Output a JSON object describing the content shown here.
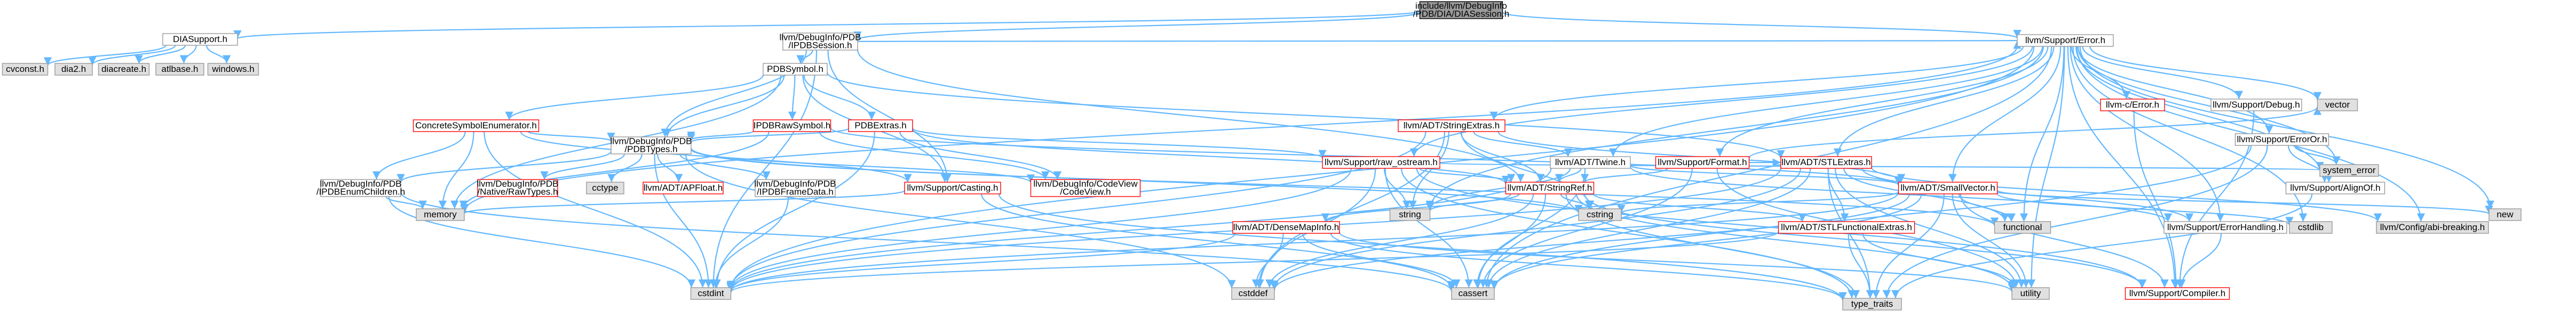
{
  "colors": {
    "edge": "#63b8ff",
    "node_fill": "#ffffff",
    "node_focus_fill": "#999999",
    "external_fill": "#e0e0e0",
    "border_gray": "#999999",
    "border_red": "#ff0000",
    "border_black": "#000000"
  },
  "nodes": [
    {
      "id": "root",
      "lines": [
        "include/llvm/DebugInfo",
        "/PDB/DIA/DIASession.h"
      ],
      "style": "focus"
    },
    {
      "id": "diasupport",
      "lines": [
        "DIASupport.h"
      ],
      "style": "normal"
    },
    {
      "id": "pdbsession",
      "lines": [
        "llvm/DebugInfo/PDB",
        "/IPDBSession.h"
      ],
      "style": "normal"
    },
    {
      "id": "supporterror",
      "lines": [
        "llvm/Support/Error.h"
      ],
      "style": "normal"
    },
    {
      "id": "cvconst",
      "lines": [
        "cvconst.h"
      ],
      "style": "external"
    },
    {
      "id": "dia2",
      "lines": [
        "dia2.h"
      ],
      "style": "external"
    },
    {
      "id": "diacreate",
      "lines": [
        "diacreate.h"
      ],
      "style": "external"
    },
    {
      "id": "atlbase",
      "lines": [
        "atlbase.h"
      ],
      "style": "external"
    },
    {
      "id": "windows",
      "lines": [
        "windows.h"
      ],
      "style": "external"
    },
    {
      "id": "pdbsymbol",
      "lines": [
        "PDBSymbol.h"
      ],
      "style": "normal"
    },
    {
      "id": "concreteenum",
      "lines": [
        "ConcreteSymbolEnumerator.h"
      ],
      "style": "red"
    },
    {
      "id": "ipdbraw",
      "lines": [
        "IPDBRawSymbol.h"
      ],
      "style": "red"
    },
    {
      "id": "pdbextras",
      "lines": [
        "PDBExtras.h"
      ],
      "style": "red"
    },
    {
      "id": "pdbtypes",
      "lines": [
        "llvm/DebugInfo/PDB",
        "/PDBTypes.h"
      ],
      "style": "normal"
    },
    {
      "id": "stringextras",
      "lines": [
        "llvm/ADT/StringExtras.h"
      ],
      "style": "red"
    },
    {
      "id": "rawostream",
      "lines": [
        "llvm/Support/raw_ostream.h"
      ],
      "style": "red"
    },
    {
      "id": "twine",
      "lines": [
        "llvm/ADT/Twine.h"
      ],
      "style": "normal"
    },
    {
      "id": "supportformat",
      "lines": [
        "llvm/Support/Format.h"
      ],
      "style": "red"
    },
    {
      "id": "stlextras",
      "lines": [
        "llvm/ADT/STLExtras.h"
      ],
      "style": "red"
    },
    {
      "id": "cerror",
      "lines": [
        "llvm-c/Error.h"
      ],
      "style": "red"
    },
    {
      "id": "supportdebug",
      "lines": [
        "llvm/Support/Debug.h"
      ],
      "style": "normal"
    },
    {
      "id": "vector",
      "lines": [
        "vector"
      ],
      "style": "external"
    },
    {
      "id": "erroror",
      "lines": [
        "llvm/Support/ErrorOr.h"
      ],
      "style": "normal"
    },
    {
      "id": "systemerror",
      "lines": [
        "system_error"
      ],
      "style": "external"
    },
    {
      "id": "ipdbenum",
      "lines": [
        "llvm/DebugInfo/PDB",
        "/IPDBEnumChildren.h"
      ],
      "style": "normal"
    },
    {
      "id": "nativeraw",
      "lines": [
        "llvm/DebugInfo/PDB",
        "/Native/RawTypes.h"
      ],
      "style": "red"
    },
    {
      "id": "cctype",
      "lines": [
        "cctype"
      ],
      "style": "external"
    },
    {
      "id": "apfloat",
      "lines": [
        "llvm/ADT/APFloat.h"
      ],
      "style": "red"
    },
    {
      "id": "frameData",
      "lines": [
        "llvm/DebugInfo/PDB",
        "/IPDBFrameData.h"
      ],
      "style": "normal"
    },
    {
      "id": "casting",
      "lines": [
        "llvm/Support/Casting.h"
      ],
      "style": "red"
    },
    {
      "id": "codeview",
      "lines": [
        "llvm/DebugInfo/CodeView",
        "/CodeView.h"
      ],
      "style": "red"
    },
    {
      "id": "stringref",
      "lines": [
        "llvm/ADT/StringRef.h"
      ],
      "style": "red"
    },
    {
      "id": "smallvector",
      "lines": [
        "llvm/ADT/SmallVector.h"
      ],
      "style": "red"
    },
    {
      "id": "alignof",
      "lines": [
        "llvm/Support/AlignOf.h"
      ],
      "style": "normal"
    },
    {
      "id": "memory",
      "lines": [
        "memory"
      ],
      "style": "external"
    },
    {
      "id": "string",
      "lines": [
        "string"
      ],
      "style": "external"
    },
    {
      "id": "cstring",
      "lines": [
        "cstring"
      ],
      "style": "external"
    },
    {
      "id": "densemapinfo",
      "lines": [
        "llvm/ADT/DenseMapInfo.h"
      ],
      "style": "red"
    },
    {
      "id": "stlfunctional",
      "lines": [
        "llvm/ADT/STLFunctionalExtras.h"
      ],
      "style": "red"
    },
    {
      "id": "functional",
      "lines": [
        "functional"
      ],
      "style": "external"
    },
    {
      "id": "cstdlib",
      "lines": [
        "cstdlib"
      ],
      "style": "external"
    },
    {
      "id": "errorhandling",
      "lines": [
        "llvm/Support/ErrorHandling.h"
      ],
      "style": "normal"
    },
    {
      "id": "configabi",
      "lines": [
        "llvm/Config/abi-breaking.h"
      ],
      "style": "external"
    },
    {
      "id": "new",
      "lines": [
        "new"
      ],
      "style": "external"
    },
    {
      "id": "cstdint",
      "lines": [
        "cstdint"
      ],
      "style": "external"
    },
    {
      "id": "cstddef",
      "lines": [
        "cstddef"
      ],
      "style": "external"
    },
    {
      "id": "cassert",
      "lines": [
        "cassert"
      ],
      "style": "external"
    },
    {
      "id": "typetraits",
      "lines": [
        "type_traits"
      ],
      "style": "external"
    },
    {
      "id": "utility",
      "lines": [
        "utility"
      ],
      "style": "external"
    },
    {
      "id": "compiler",
      "lines": [
        "llvm/Support/Compiler.h"
      ],
      "style": "red"
    }
  ]
}
